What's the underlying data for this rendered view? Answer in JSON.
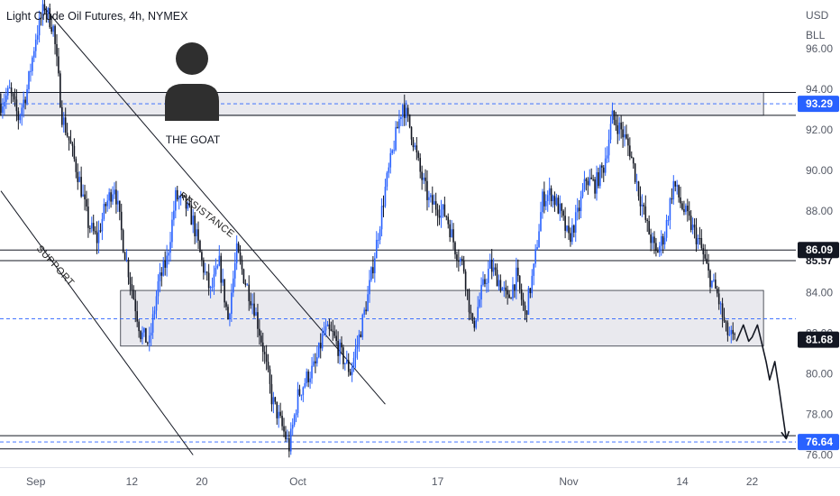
{
  "header": {
    "title": "Light Crude Oil Futures, 4h, NYMEX"
  },
  "currency": {
    "line1": "USD",
    "line2": "BLL"
  },
  "avatar": {
    "label": "THE GOAT",
    "icon": "user-silhouette-icon"
  },
  "annotations": {
    "resistance": "RESISTANCE",
    "support": "SUPPORT"
  },
  "colors": {
    "up": "#2962ff",
    "down": "#131722",
    "zone_fill": "#e9e9ee",
    "dashed": "#2962ff",
    "tag_blue": "#2962ff",
    "tag_black": "#131722"
  },
  "price_tags": [
    {
      "label": "93.29",
      "value": 93.29,
      "style": "blue"
    },
    {
      "label": "86.09",
      "value": 86.09,
      "style": "black"
    },
    {
      "label": "85.57",
      "value": 85.57,
      "style": "none"
    },
    {
      "label": "81.68",
      "value": 81.68,
      "style": "black"
    },
    {
      "label": "76.64",
      "value": 76.64,
      "style": "blue"
    }
  ],
  "chart_data": {
    "type": "candlestick",
    "title": "Light Crude Oil Futures, 4h, NYMEX",
    "y_ticks": [
      "76.00",
      "78.00",
      "80.00",
      "82.00",
      "84.00",
      "86.00",
      "88.00",
      "90.00",
      "92.00",
      "94.00",
      "96.00"
    ],
    "y_tick_values": [
      76,
      78,
      80,
      82,
      84,
      86,
      88,
      90,
      92,
      94,
      96
    ],
    "ylim": [
      75.4,
      98.4
    ],
    "x_ticks": [
      {
        "label": "Sep",
        "day": 0
      },
      {
        "label": "12",
        "day": 11
      },
      {
        "label": "20",
        "day": 19
      },
      {
        "label": "Oct",
        "day": 30
      },
      {
        "label": "17",
        "day": 46
      },
      {
        "label": "Nov",
        "day": 61
      },
      {
        "label": "14",
        "day": 74
      },
      {
        "label": "22",
        "day": 82
      }
    ],
    "xlim_days": [
      -4.1,
      87
    ],
    "price_path": [
      [
        -4,
        93.3
      ],
      [
        -3,
        93.9
      ],
      [
        -2,
        92.6
      ],
      [
        -1,
        94.0
      ],
      [
        0,
        96.6
      ],
      [
        1,
        98.1
      ],
      [
        2,
        97.0
      ],
      [
        3,
        92.7
      ],
      [
        4,
        91.2
      ],
      [
        5,
        89.5
      ],
      [
        6,
        87.4
      ],
      [
        7,
        86.6
      ],
      [
        8,
        88.3
      ],
      [
        9,
        89.3
      ],
      [
        10,
        86.4
      ],
      [
        11,
        84.2
      ],
      [
        12,
        82.0
      ],
      [
        13,
        81.5
      ],
      [
        14,
        84.4
      ],
      [
        15,
        85.6
      ],
      [
        16,
        88.7
      ],
      [
        17,
        88.4
      ],
      [
        18,
        87.5
      ],
      [
        19,
        85.5
      ],
      [
        20,
        84.0
      ],
      [
        21,
        85.4
      ],
      [
        22,
        82.7
      ],
      [
        23,
        86.0
      ],
      [
        24,
        84.5
      ],
      [
        25,
        83.3
      ],
      [
        26,
        81.3
      ],
      [
        27,
        78.8
      ],
      [
        28,
        77.6
      ],
      [
        29,
        76.4
      ],
      [
        30,
        78.9
      ],
      [
        31,
        79.8
      ],
      [
        32,
        80.4
      ],
      [
        33,
        82.1
      ],
      [
        34,
        81.9
      ],
      [
        35,
        80.9
      ],
      [
        36,
        80.1
      ],
      [
        37,
        81.8
      ],
      [
        38,
        83.8
      ],
      [
        39,
        86.4
      ],
      [
        40,
        89.1
      ],
      [
        41,
        91.3
      ],
      [
        42,
        93.3
      ],
      [
        43,
        91.9
      ],
      [
        44,
        89.9
      ],
      [
        45,
        88.5
      ],
      [
        46,
        88.2
      ],
      [
        47,
        87.8
      ],
      [
        48,
        86.2
      ],
      [
        49,
        85.2
      ],
      [
        50,
        82.2
      ],
      [
        51,
        84.0
      ],
      [
        52,
        85.3
      ],
      [
        53,
        84.6
      ],
      [
        54,
        83.6
      ],
      [
        55,
        84.8
      ],
      [
        56,
        82.9
      ],
      [
        57,
        85.1
      ],
      [
        58,
        88.6
      ],
      [
        59,
        88.9
      ],
      [
        60,
        88.0
      ],
      [
        61,
        86.6
      ],
      [
        62,
        87.8
      ],
      [
        63,
        89.6
      ],
      [
        64,
        89.3
      ],
      [
        65,
        90.2
      ],
      [
        66,
        92.6
      ],
      [
        67,
        92.0
      ],
      [
        68,
        91.0
      ],
      [
        69,
        89.0
      ],
      [
        70,
        87.2
      ],
      [
        71,
        85.9
      ],
      [
        72,
        86.9
      ],
      [
        73,
        89.4
      ],
      [
        74,
        88.2
      ],
      [
        75,
        87.3
      ],
      [
        76,
        86.4
      ],
      [
        77,
        84.9
      ],
      [
        78,
        83.9
      ],
      [
        79,
        82.1
      ],
      [
        80,
        81.6
      ]
    ],
    "horizontal_levels": [
      {
        "price": 93.29,
        "style": "dashed"
      },
      {
        "price": 92.72,
        "style": "solid"
      },
      {
        "price": 93.85,
        "style": "solid"
      },
      {
        "price": 86.09,
        "style": "solid"
      },
      {
        "price": 85.57,
        "style": "solid"
      },
      {
        "price": 82.7,
        "style": "dashed"
      },
      {
        "price": 76.64,
        "style": "dashed"
      },
      {
        "price": 76.95,
        "style": "solid"
      },
      {
        "price": 76.3,
        "style": "solid"
      }
    ],
    "zones": [
      {
        "from_day": -4.1,
        "to_day": 83.3,
        "low": 92.72,
        "high": 93.85
      },
      {
        "from_day": 9.7,
        "to_day": 83.3,
        "low": 81.36,
        "high": 84.1
      }
    ],
    "trendlines": [
      {
        "name": "resistance",
        "from": [
          1,
          98.0
        ],
        "to": [
          40,
          78.5
        ]
      },
      {
        "name": "support",
        "from": [
          -4,
          89.0
        ],
        "to": [
          18,
          76.0
        ]
      }
    ],
    "projection": [
      [
        80.2,
        81.6
      ],
      [
        81.0,
        82.4
      ],
      [
        81.6,
        81.6
      ],
      [
        82.0,
        81.8
      ],
      [
        82.6,
        82.4
      ],
      [
        83.1,
        81.5
      ],
      [
        83.6,
        80.6
      ],
      [
        84.0,
        79.7
      ],
      [
        84.6,
        80.6
      ],
      [
        85.1,
        79.2
      ],
      [
        85.6,
        77.7
      ],
      [
        85.9,
        76.8
      ]
    ]
  }
}
